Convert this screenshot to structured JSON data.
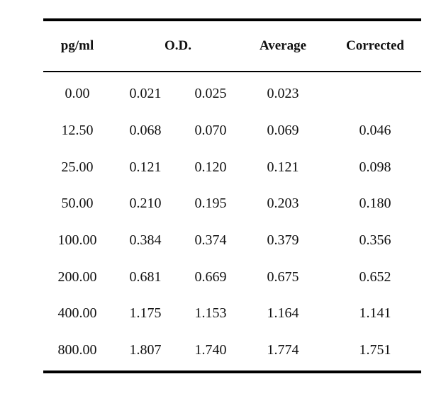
{
  "table": {
    "headers": {
      "pg": "pg/ml",
      "od": "O.D.",
      "average": "Average",
      "corrected": "Corrected"
    },
    "rows": [
      {
        "pg": "0.00",
        "od1": "0.021",
        "od2": "0.025",
        "average": "0.023",
        "corrected": ""
      },
      {
        "pg": "12.50",
        "od1": "0.068",
        "od2": "0.070",
        "average": "0.069",
        "corrected": "0.046"
      },
      {
        "pg": "25.00",
        "od1": "0.121",
        "od2": "0.120",
        "average": "0.121",
        "corrected": "0.098"
      },
      {
        "pg": "50.00",
        "od1": "0.210",
        "od2": "0.195",
        "average": "0.203",
        "corrected": "0.180"
      },
      {
        "pg": "100.00",
        "od1": "0.384",
        "od2": "0.374",
        "average": "0.379",
        "corrected": "0.356"
      },
      {
        "pg": "200.00",
        "od1": "0.681",
        "od2": "0.669",
        "average": "0.675",
        "corrected": "0.652"
      },
      {
        "pg": "400.00",
        "od1": "1.175",
        "od2": "1.153",
        "average": "1.164",
        "corrected": "1.141"
      },
      {
        "pg": "800.00",
        "od1": "1.807",
        "od2": "1.740",
        "average": "1.774",
        "corrected": "1.751"
      }
    ]
  }
}
